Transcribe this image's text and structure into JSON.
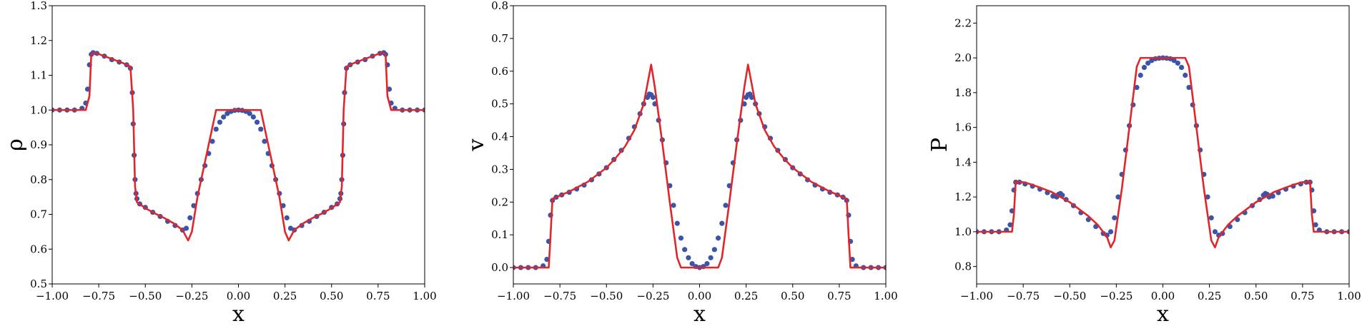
{
  "chart_data": [
    {
      "type": "line",
      "id": "density",
      "xlabel": "x",
      "ylabel": "ρ",
      "xlim": [
        -1.0,
        1.0
      ],
      "ylim": [
        0.5,
        1.3
      ],
      "xticks": [
        "−1.00",
        "−0.75",
        "−0.50",
        "−0.25",
        "0.00",
        "0.25",
        "0.50",
        "0.75",
        "1.00"
      ],
      "yticks": [
        "0.5",
        "0.6",
        "0.7",
        "0.8",
        "0.9",
        "1.0",
        "1.1",
        "1.2",
        "1.3"
      ],
      "series": [
        {
          "style": "line",
          "color": "#e0262b",
          "x": [
            -1.0,
            -0.82,
            -0.8,
            -0.79,
            -0.77,
            -0.72,
            -0.67,
            -0.62,
            -0.58,
            -0.565,
            -0.555,
            -0.545,
            -0.5,
            -0.45,
            -0.4,
            -0.35,
            -0.3,
            -0.27,
            -0.25,
            -0.22,
            -0.18,
            -0.14,
            -0.12,
            0.0,
            0.12,
            0.14,
            0.18,
            0.22,
            0.25,
            0.27,
            0.3,
            0.35,
            0.4,
            0.45,
            0.5,
            0.545,
            0.555,
            0.565,
            0.58,
            0.62,
            0.67,
            0.72,
            0.77,
            0.79,
            0.8,
            0.82,
            1.0
          ],
          "y": [
            1.0,
            1.0,
            1.04,
            1.16,
            1.165,
            1.155,
            1.145,
            1.135,
            1.125,
            1.0,
            0.78,
            0.735,
            0.718,
            0.703,
            0.69,
            0.675,
            0.655,
            0.625,
            0.65,
            0.75,
            0.85,
            0.95,
            1.0,
            1.0,
            1.0,
            0.95,
            0.85,
            0.75,
            0.65,
            0.625,
            0.655,
            0.675,
            0.69,
            0.703,
            0.718,
            0.735,
            0.78,
            1.0,
            1.125,
            1.135,
            1.145,
            1.155,
            1.165,
            1.16,
            1.04,
            1.0,
            1.0
          ]
        },
        {
          "style": "scatter",
          "color": "#3a55a8",
          "x": [
            -1.0,
            -0.96,
            -0.92,
            -0.88,
            -0.84,
            -0.82,
            -0.81,
            -0.8,
            -0.79,
            -0.78,
            -0.76,
            -0.72,
            -0.68,
            -0.64,
            -0.6,
            -0.58,
            -0.57,
            -0.565,
            -0.56,
            -0.555,
            -0.55,
            -0.545,
            -0.53,
            -0.5,
            -0.46,
            -0.42,
            -0.38,
            -0.34,
            -0.3,
            -0.28,
            -0.26,
            -0.24,
            -0.22,
            -0.2,
            -0.18,
            -0.16,
            -0.14,
            -0.12,
            -0.1,
            -0.08,
            -0.06,
            -0.04,
            -0.02,
            0.0,
            0.02,
            0.04,
            0.06,
            0.08,
            0.1,
            0.12,
            0.14,
            0.16,
            0.18,
            0.2,
            0.22,
            0.24,
            0.26,
            0.28,
            0.3,
            0.34,
            0.38,
            0.42,
            0.46,
            0.5,
            0.53,
            0.545,
            0.55,
            0.555,
            0.56,
            0.565,
            0.57,
            0.58,
            0.6,
            0.64,
            0.68,
            0.72,
            0.76,
            0.78,
            0.79,
            0.8,
            0.81,
            0.82,
            0.84,
            0.88,
            0.92,
            0.96,
            1.0
          ],
          "y": [
            1.0,
            1.0,
            1.0,
            1.0,
            1.005,
            1.02,
            1.06,
            1.13,
            1.16,
            1.165,
            1.163,
            1.155,
            1.145,
            1.138,
            1.13,
            1.12,
            1.05,
            0.96,
            0.87,
            0.8,
            0.76,
            0.745,
            0.73,
            0.72,
            0.706,
            0.694,
            0.68,
            0.668,
            0.655,
            0.66,
            0.69,
            0.725,
            0.76,
            0.8,
            0.84,
            0.875,
            0.91,
            0.945,
            0.965,
            0.98,
            0.99,
            0.996,
            0.999,
            1.0,
            0.999,
            0.996,
            0.99,
            0.98,
            0.965,
            0.945,
            0.91,
            0.875,
            0.84,
            0.8,
            0.76,
            0.725,
            0.69,
            0.66,
            0.655,
            0.668,
            0.68,
            0.694,
            0.706,
            0.72,
            0.73,
            0.745,
            0.76,
            0.8,
            0.87,
            0.96,
            1.05,
            1.12,
            1.13,
            1.138,
            1.145,
            1.155,
            1.163,
            1.165,
            1.16,
            1.13,
            1.06,
            1.02,
            1.005,
            1.0,
            1.0,
            1.0,
            1.0
          ]
        }
      ]
    },
    {
      "type": "line",
      "id": "velocity",
      "xlabel": "x",
      "ylabel": "v",
      "xlim": [
        -1.0,
        1.0
      ],
      "ylim": [
        -0.05,
        0.8
      ],
      "xticks": [
        "−1.00",
        "−0.75",
        "−0.50",
        "−0.25",
        "0.00",
        "0.25",
        "0.50",
        "0.75",
        "1.00"
      ],
      "yticks": [
        "0.0",
        "0.1",
        "0.2",
        "0.3",
        "0.4",
        "0.5",
        "0.6",
        "0.7",
        "0.8"
      ],
      "series": [
        {
          "style": "line",
          "color": "#e0262b",
          "x": [
            -1.0,
            -0.81,
            -0.8,
            -0.79,
            -0.75,
            -0.7,
            -0.6,
            -0.5,
            -0.45,
            -0.4,
            -0.35,
            -0.3,
            -0.28,
            -0.26,
            -0.24,
            -0.2,
            -0.16,
            -0.12,
            -0.1,
            0.0,
            0.1,
            0.12,
            0.16,
            0.2,
            0.24,
            0.26,
            0.28,
            0.3,
            0.35,
            0.4,
            0.45,
            0.5,
            0.6,
            0.7,
            0.75,
            0.79,
            0.8,
            0.81,
            1.0
          ],
          "y": [
            0.0,
            0.0,
            0.1,
            0.21,
            0.22,
            0.232,
            0.262,
            0.305,
            0.335,
            0.37,
            0.42,
            0.5,
            0.56,
            0.62,
            0.55,
            0.38,
            0.2,
            0.03,
            0.0,
            0.0,
            0.0,
            0.03,
            0.2,
            0.38,
            0.55,
            0.62,
            0.56,
            0.5,
            0.42,
            0.37,
            0.335,
            0.305,
            0.262,
            0.232,
            0.22,
            0.21,
            0.1,
            0.0,
            0.0
          ]
        },
        {
          "style": "scatter",
          "color": "#3a55a8",
          "x": [
            -1.0,
            -0.96,
            -0.92,
            -0.88,
            -0.84,
            -0.82,
            -0.81,
            -0.8,
            -0.79,
            -0.77,
            -0.74,
            -0.7,
            -0.66,
            -0.62,
            -0.58,
            -0.54,
            -0.5,
            -0.46,
            -0.42,
            -0.38,
            -0.35,
            -0.32,
            -0.3,
            -0.28,
            -0.27,
            -0.26,
            -0.25,
            -0.24,
            -0.22,
            -0.2,
            -0.18,
            -0.16,
            -0.14,
            -0.12,
            -0.1,
            -0.08,
            -0.06,
            -0.04,
            -0.02,
            0.0,
            0.02,
            0.04,
            0.06,
            0.08,
            0.1,
            0.12,
            0.14,
            0.16,
            0.18,
            0.2,
            0.22,
            0.24,
            0.25,
            0.26,
            0.27,
            0.28,
            0.3,
            0.32,
            0.35,
            0.38,
            0.42,
            0.46,
            0.5,
            0.54,
            0.58,
            0.62,
            0.66,
            0.7,
            0.74,
            0.77,
            0.79,
            0.8,
            0.81,
            0.82,
            0.84,
            0.88,
            0.92,
            0.96,
            1.0
          ],
          "y": [
            0.0,
            0.0,
            0.0,
            0.0,
            0.005,
            0.025,
            0.08,
            0.16,
            0.205,
            0.215,
            0.222,
            0.23,
            0.24,
            0.252,
            0.268,
            0.286,
            0.305,
            0.33,
            0.358,
            0.395,
            0.43,
            0.47,
            0.5,
            0.52,
            0.53,
            0.528,
            0.52,
            0.5,
            0.45,
            0.39,
            0.32,
            0.25,
            0.19,
            0.135,
            0.09,
            0.055,
            0.03,
            0.012,
            0.003,
            0.0,
            0.003,
            0.012,
            0.03,
            0.055,
            0.09,
            0.135,
            0.19,
            0.25,
            0.32,
            0.39,
            0.45,
            0.5,
            0.52,
            0.528,
            0.53,
            0.52,
            0.5,
            0.47,
            0.43,
            0.395,
            0.358,
            0.33,
            0.305,
            0.286,
            0.268,
            0.252,
            0.24,
            0.23,
            0.222,
            0.215,
            0.205,
            0.16,
            0.08,
            0.025,
            0.005,
            0.0,
            0.0,
            0.0,
            0.0
          ]
        }
      ]
    },
    {
      "type": "line",
      "id": "pressure",
      "xlabel": "x",
      "ylabel": "P",
      "xlim": [
        -1.0,
        1.0
      ],
      "ylim": [
        0.7,
        2.3
      ],
      "xticks": [
        "−1.00",
        "−0.75",
        "−0.50",
        "−0.25",
        "0.00",
        "0.25",
        "0.50",
        "0.75",
        "1.00"
      ],
      "yticks": [
        "0.8",
        "1.0",
        "1.2",
        "1.4",
        "1.6",
        "1.8",
        "2.0",
        "2.2"
      ],
      "series": [
        {
          "style": "line",
          "color": "#e0262b",
          "x": [
            -1.0,
            -0.81,
            -0.8,
            -0.79,
            -0.75,
            -0.7,
            -0.65,
            -0.6,
            -0.55,
            -0.5,
            -0.45,
            -0.4,
            -0.35,
            -0.3,
            -0.28,
            -0.26,
            -0.22,
            -0.18,
            -0.14,
            -0.12,
            0.0,
            0.12,
            0.14,
            0.18,
            0.22,
            0.26,
            0.28,
            0.3,
            0.35,
            0.4,
            0.45,
            0.5,
            0.55,
            0.6,
            0.65,
            0.7,
            0.75,
            0.79,
            0.8,
            0.81,
            1.0
          ],
          "y": [
            1.0,
            1.0,
            1.1,
            1.29,
            1.285,
            1.27,
            1.25,
            1.23,
            1.2,
            1.17,
            1.13,
            1.09,
            1.04,
            0.97,
            0.91,
            0.95,
            1.25,
            1.6,
            1.95,
            2.0,
            2.0,
            2.0,
            1.95,
            1.6,
            1.25,
            0.95,
            0.91,
            0.97,
            1.04,
            1.09,
            1.13,
            1.17,
            1.2,
            1.23,
            1.25,
            1.27,
            1.285,
            1.29,
            1.1,
            1.0,
            1.0
          ]
        },
        {
          "style": "scatter",
          "color": "#3a55a8",
          "x": [
            -1.0,
            -0.96,
            -0.92,
            -0.88,
            -0.84,
            -0.82,
            -0.81,
            -0.8,
            -0.79,
            -0.77,
            -0.74,
            -0.7,
            -0.66,
            -0.62,
            -0.59,
            -0.57,
            -0.56,
            -0.55,
            -0.54,
            -0.52,
            -0.48,
            -0.44,
            -0.4,
            -0.36,
            -0.32,
            -0.3,
            -0.28,
            -0.26,
            -0.24,
            -0.22,
            -0.2,
            -0.18,
            -0.16,
            -0.14,
            -0.12,
            -0.1,
            -0.08,
            -0.06,
            -0.04,
            -0.02,
            0.0,
            0.02,
            0.04,
            0.06,
            0.08,
            0.1,
            0.12,
            0.14,
            0.16,
            0.18,
            0.2,
            0.22,
            0.24,
            0.26,
            0.28,
            0.3,
            0.32,
            0.36,
            0.4,
            0.44,
            0.48,
            0.52,
            0.54,
            0.55,
            0.56,
            0.57,
            0.59,
            0.62,
            0.66,
            0.7,
            0.74,
            0.77,
            0.79,
            0.8,
            0.81,
            0.82,
            0.84,
            0.88,
            0.92,
            0.96,
            1.0
          ],
          "y": [
            1.0,
            1.0,
            1.0,
            1.0,
            1.01,
            1.04,
            1.12,
            1.24,
            1.285,
            1.285,
            1.275,
            1.262,
            1.245,
            1.225,
            1.205,
            1.2,
            1.215,
            1.22,
            1.21,
            1.185,
            1.15,
            1.11,
            1.07,
            1.03,
            0.99,
            0.98,
            1.0,
            1.08,
            1.2,
            1.33,
            1.47,
            1.61,
            1.73,
            1.83,
            1.9,
            1.945,
            1.97,
            1.985,
            1.995,
            1.998,
            2.0,
            1.998,
            1.995,
            1.985,
            1.97,
            1.945,
            1.9,
            1.83,
            1.73,
            1.61,
            1.47,
            1.33,
            1.2,
            1.08,
            1.0,
            0.98,
            0.99,
            1.03,
            1.07,
            1.11,
            1.15,
            1.185,
            1.21,
            1.22,
            1.215,
            1.2,
            1.205,
            1.225,
            1.245,
            1.262,
            1.275,
            1.285,
            1.285,
            1.24,
            1.12,
            1.04,
            1.01,
            1.0,
            1.0,
            1.0,
            1.0
          ]
        }
      ]
    }
  ]
}
